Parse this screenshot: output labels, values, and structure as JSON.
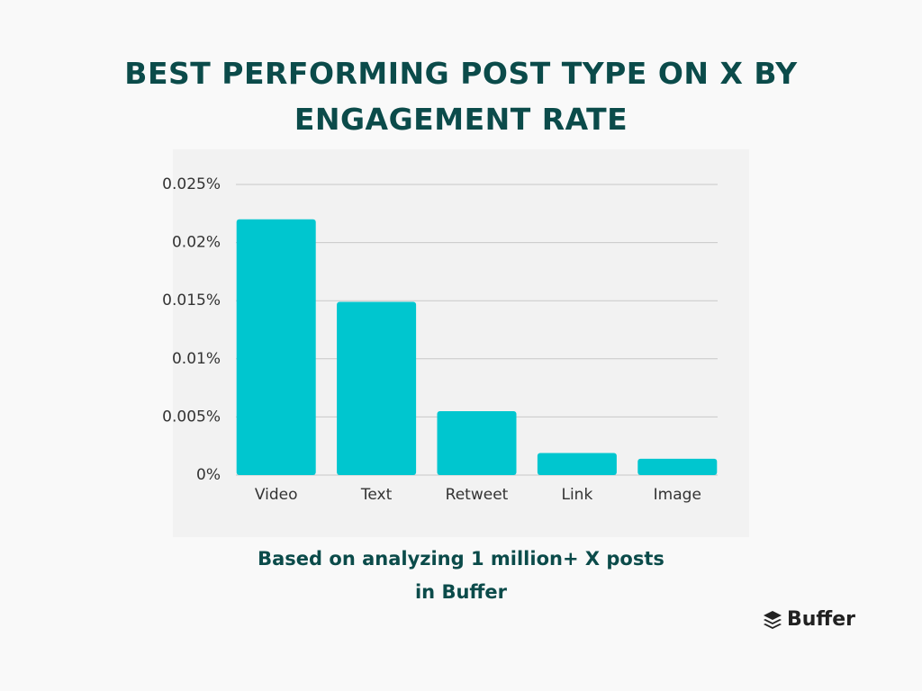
{
  "chart_data": {
    "type": "bar",
    "title": "BEST PERFORMING POST TYPE ON X BY ENGAGEMENT RATE",
    "categories": [
      "Video",
      "Text",
      "Retweet",
      "Link",
      "Image"
    ],
    "values": [
      0.022,
      0.0149,
      0.0055,
      0.0019,
      0.0014
    ],
    "color": "#00c6cf",
    "ylim": [
      0,
      0.025
    ],
    "yticks": [
      {
        "value": 0,
        "label": "0%"
      },
      {
        "value": 0.005,
        "label": "0.005%"
      },
      {
        "value": 0.01,
        "label": "0.01%"
      },
      {
        "value": 0.015,
        "label": "0.015%"
      },
      {
        "value": 0.02,
        "label": "0.02%"
      },
      {
        "value": 0.025,
        "label": "0.025%"
      }
    ],
    "grid": true,
    "annotation": "Based on analyzing 1 million+ X posts in Buffer"
  },
  "logo": "Buffer"
}
